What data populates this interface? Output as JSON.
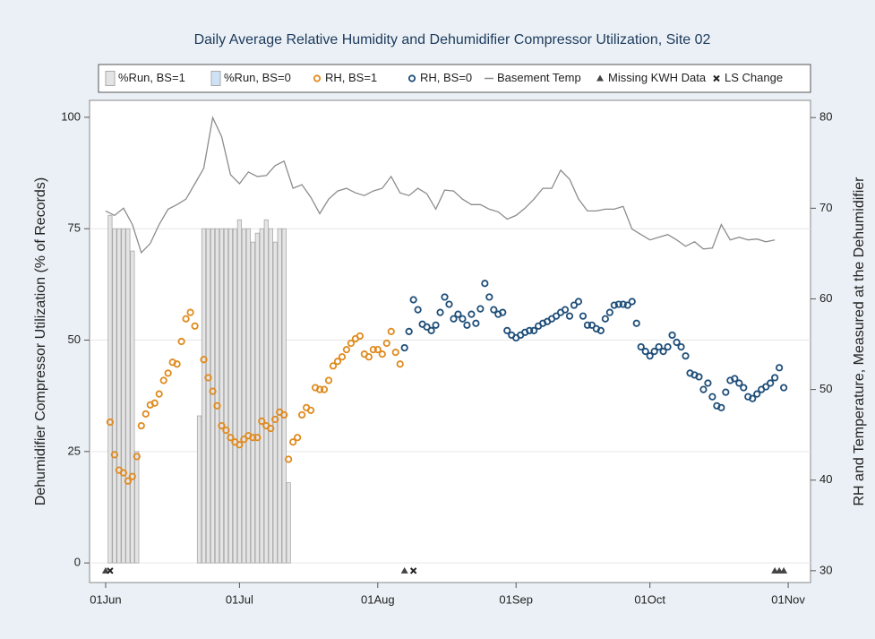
{
  "chart_data": {
    "type": "combo",
    "title": "Daily Average Relative Humidity and Dehumidifier Compressor Utilization, Site 02",
    "y_label": "Dehumidifier Compressor Utilization (% of Records)",
    "y2_label": "RH and Temperature, Measured at the Dehumidifier",
    "xlim": [
      -3.6,
      158
    ],
    "xticks": [
      {
        "value": 0,
        "label": "01Jun"
      },
      {
        "value": 30,
        "label": "01Jul"
      },
      {
        "value": 61,
        "label": "01Aug"
      },
      {
        "value": 92,
        "label": "01Sep"
      },
      {
        "value": 122,
        "label": "01Oct"
      },
      {
        "value": 153,
        "label": "01Nov"
      }
    ],
    "ylim": [
      -4.4,
      103.8
    ],
    "yticks": [
      0,
      25,
      50,
      75,
      100
    ],
    "y2lim": [
      28.7,
      81.9
    ],
    "y2ticks": [
      30,
      40,
      50,
      60,
      70,
      80
    ],
    "grid": true,
    "legend": "top",
    "series": [
      {
        "name": "%Run, BS=1",
        "type": "bar",
        "color": "#e4e4e4",
        "x": [
          1,
          2,
          3,
          4,
          5,
          6,
          7,
          21,
          22,
          23,
          24,
          25,
          26,
          27,
          28,
          29,
          30,
          31,
          32,
          33,
          34,
          35,
          36,
          37,
          38,
          39,
          40,
          41
        ],
        "values": [
          78,
          75,
          75,
          75,
          75,
          70,
          25,
          33,
          75,
          75,
          75,
          75,
          75,
          75,
          75,
          75,
          77,
          75,
          75,
          72,
          74,
          75,
          77,
          75,
          72,
          75,
          75,
          18
        ]
      },
      {
        "name": "%Run, BS=0",
        "type": "bar",
        "color": "#cfe2f5",
        "x": [],
        "values": []
      },
      {
        "name": "RH, BS=1",
        "type": "scatter",
        "marker": "circle",
        "color": "#e08a1e",
        "axis": "y2",
        "x": [
          1,
          2,
          3,
          4,
          5,
          6,
          7,
          8,
          9,
          10,
          11,
          12,
          13,
          14,
          15,
          16,
          17,
          18,
          19,
          20,
          22,
          23,
          24,
          25,
          26,
          27,
          28,
          29,
          30,
          31,
          32,
          33,
          34,
          35,
          36,
          37,
          38,
          39,
          40,
          41,
          42,
          43,
          44,
          45,
          46,
          47,
          48,
          49,
          50,
          51,
          52,
          53,
          54,
          55,
          56,
          57,
          58,
          59,
          60,
          61,
          62,
          63,
          64,
          65,
          66
        ],
        "values": [
          46.4,
          42.8,
          41.1,
          40.8,
          39.9,
          40.4,
          42.6,
          46.0,
          47.3,
          48.3,
          48.5,
          49.5,
          51.0,
          51.8,
          53.0,
          52.8,
          55.3,
          57.8,
          58.5,
          57.0,
          53.3,
          51.3,
          49.8,
          48.2,
          46.0,
          45.5,
          44.7,
          44.2,
          43.9,
          44.5,
          44.9,
          44.7,
          44.7,
          46.5,
          46.0,
          45.7,
          46.7,
          47.5,
          47.2,
          42.3,
          44.2,
          44.7,
          47.2,
          48.0,
          47.7,
          50.2,
          50.0,
          50.0,
          51.0,
          52.6,
          53.1,
          53.6,
          54.4,
          55.1,
          55.6,
          55.9,
          53.9,
          53.6,
          54.4,
          54.4,
          53.9,
          55.1,
          56.4,
          54.1,
          52.8
        ]
      },
      {
        "name": "RH, BS=0",
        "type": "scatter",
        "marker": "circle",
        "color": "#1f4e79",
        "axis": "y2",
        "x": [
          67,
          68,
          69,
          70,
          71,
          72,
          73,
          74,
          75,
          76,
          77,
          78,
          79,
          80,
          81,
          82,
          83,
          84,
          85,
          86,
          87,
          88,
          89,
          90,
          91,
          92,
          93,
          94,
          95,
          96,
          97,
          98,
          99,
          100,
          101,
          102,
          103,
          104,
          105,
          106,
          107,
          108,
          109,
          110,
          111,
          112,
          113,
          114,
          115,
          116,
          117,
          118,
          119,
          120,
          121,
          122,
          123,
          124,
          125,
          126,
          127,
          128,
          129,
          130,
          131,
          132,
          133,
          134,
          135,
          136,
          137,
          138,
          139,
          140,
          141,
          142,
          143,
          144,
          145,
          146,
          147,
          148,
          149,
          150,
          151,
          152
        ],
        "values": [
          54.6,
          56.4,
          59.9,
          58.8,
          57.2,
          56.9,
          56.5,
          57.1,
          58.5,
          60.2,
          59.4,
          57.8,
          58.3,
          57.8,
          57.1,
          58.3,
          57.3,
          58.9,
          61.7,
          60.2,
          58.8,
          58.3,
          58.5,
          56.5,
          56.0,
          55.7,
          56.0,
          56.3,
          56.5,
          56.5,
          57.0,
          57.3,
          57.5,
          57.8,
          58.1,
          58.5,
          58.8,
          58.1,
          59.3,
          59.7,
          58.1,
          57.1,
          57.1,
          56.7,
          56.5,
          57.8,
          58.5,
          59.3,
          59.4,
          59.4,
          59.3,
          59.7,
          57.3,
          54.7,
          54.2,
          53.7,
          54.2,
          54.7,
          54.2,
          54.7,
          56.0,
          55.2,
          54.7,
          53.7,
          51.8,
          51.6,
          51.4,
          50.0,
          50.7,
          49.2,
          48.2,
          48.0,
          49.7,
          51.0,
          51.2,
          50.7,
          50.2,
          49.2,
          49.0,
          49.5,
          50.0,
          50.3,
          50.7,
          51.3,
          52.4,
          50.2
        ]
      },
      {
        "name": "Basement Temp",
        "type": "line",
        "color": "#8c8c8c",
        "axis": "y2",
        "x": [
          0,
          2,
          4,
          6,
          8,
          10,
          12,
          14,
          16,
          18,
          20,
          22,
          24,
          26,
          28,
          30,
          32,
          34,
          36,
          38,
          40,
          42,
          44,
          46,
          48,
          50,
          52,
          54,
          56,
          58,
          60,
          62,
          64,
          66,
          68,
          70,
          72,
          74,
          76,
          78,
          80,
          82,
          84,
          86,
          88,
          90,
          92,
          94,
          96,
          98,
          100,
          102,
          104,
          106,
          108,
          110,
          112,
          114,
          116,
          118,
          120,
          122,
          124,
          126,
          128,
          130,
          132,
          134,
          136,
          138,
          140,
          142,
          144,
          146,
          148,
          150
        ],
        "values": [
          69.7,
          69.2,
          70.0,
          68.2,
          65.1,
          66.1,
          68.2,
          69.9,
          70.4,
          71.0,
          72.7,
          74.4,
          80.0,
          77.9,
          73.7,
          72.7,
          74.0,
          73.5,
          73.6,
          74.7,
          75.2,
          72.2,
          72.6,
          71.2,
          69.4,
          71.0,
          71.9,
          72.2,
          71.7,
          71.4,
          71.9,
          72.2,
          73.5,
          71.7,
          71.4,
          72.2,
          71.6,
          69.9,
          72.0,
          71.9,
          71.0,
          70.4,
          70.4,
          69.9,
          69.6,
          68.8,
          69.2,
          70.0,
          71.0,
          72.2,
          72.2,
          74.2,
          73.2,
          71.0,
          69.7,
          69.7,
          69.9,
          69.9,
          70.2,
          67.7,
          67.1,
          66.5,
          66.8,
          67.1,
          66.5,
          65.8,
          66.3,
          65.5,
          65.6,
          68.2,
          66.5,
          66.8,
          66.5,
          66.6,
          66.3,
          66.5
        ]
      },
      {
        "name": "Missing KWH Data",
        "type": "scatter",
        "marker": "triangle",
        "color": "#444444",
        "axis": "y2",
        "x": [
          0,
          67,
          150,
          151,
          152
        ],
        "values": [
          30,
          30,
          30,
          30,
          30
        ]
      },
      {
        "name": "LS Change",
        "type": "scatter",
        "marker": "x",
        "color": "#222222",
        "axis": "y2",
        "x": [
          1,
          69
        ],
        "values": [
          30,
          30
        ]
      }
    ]
  }
}
